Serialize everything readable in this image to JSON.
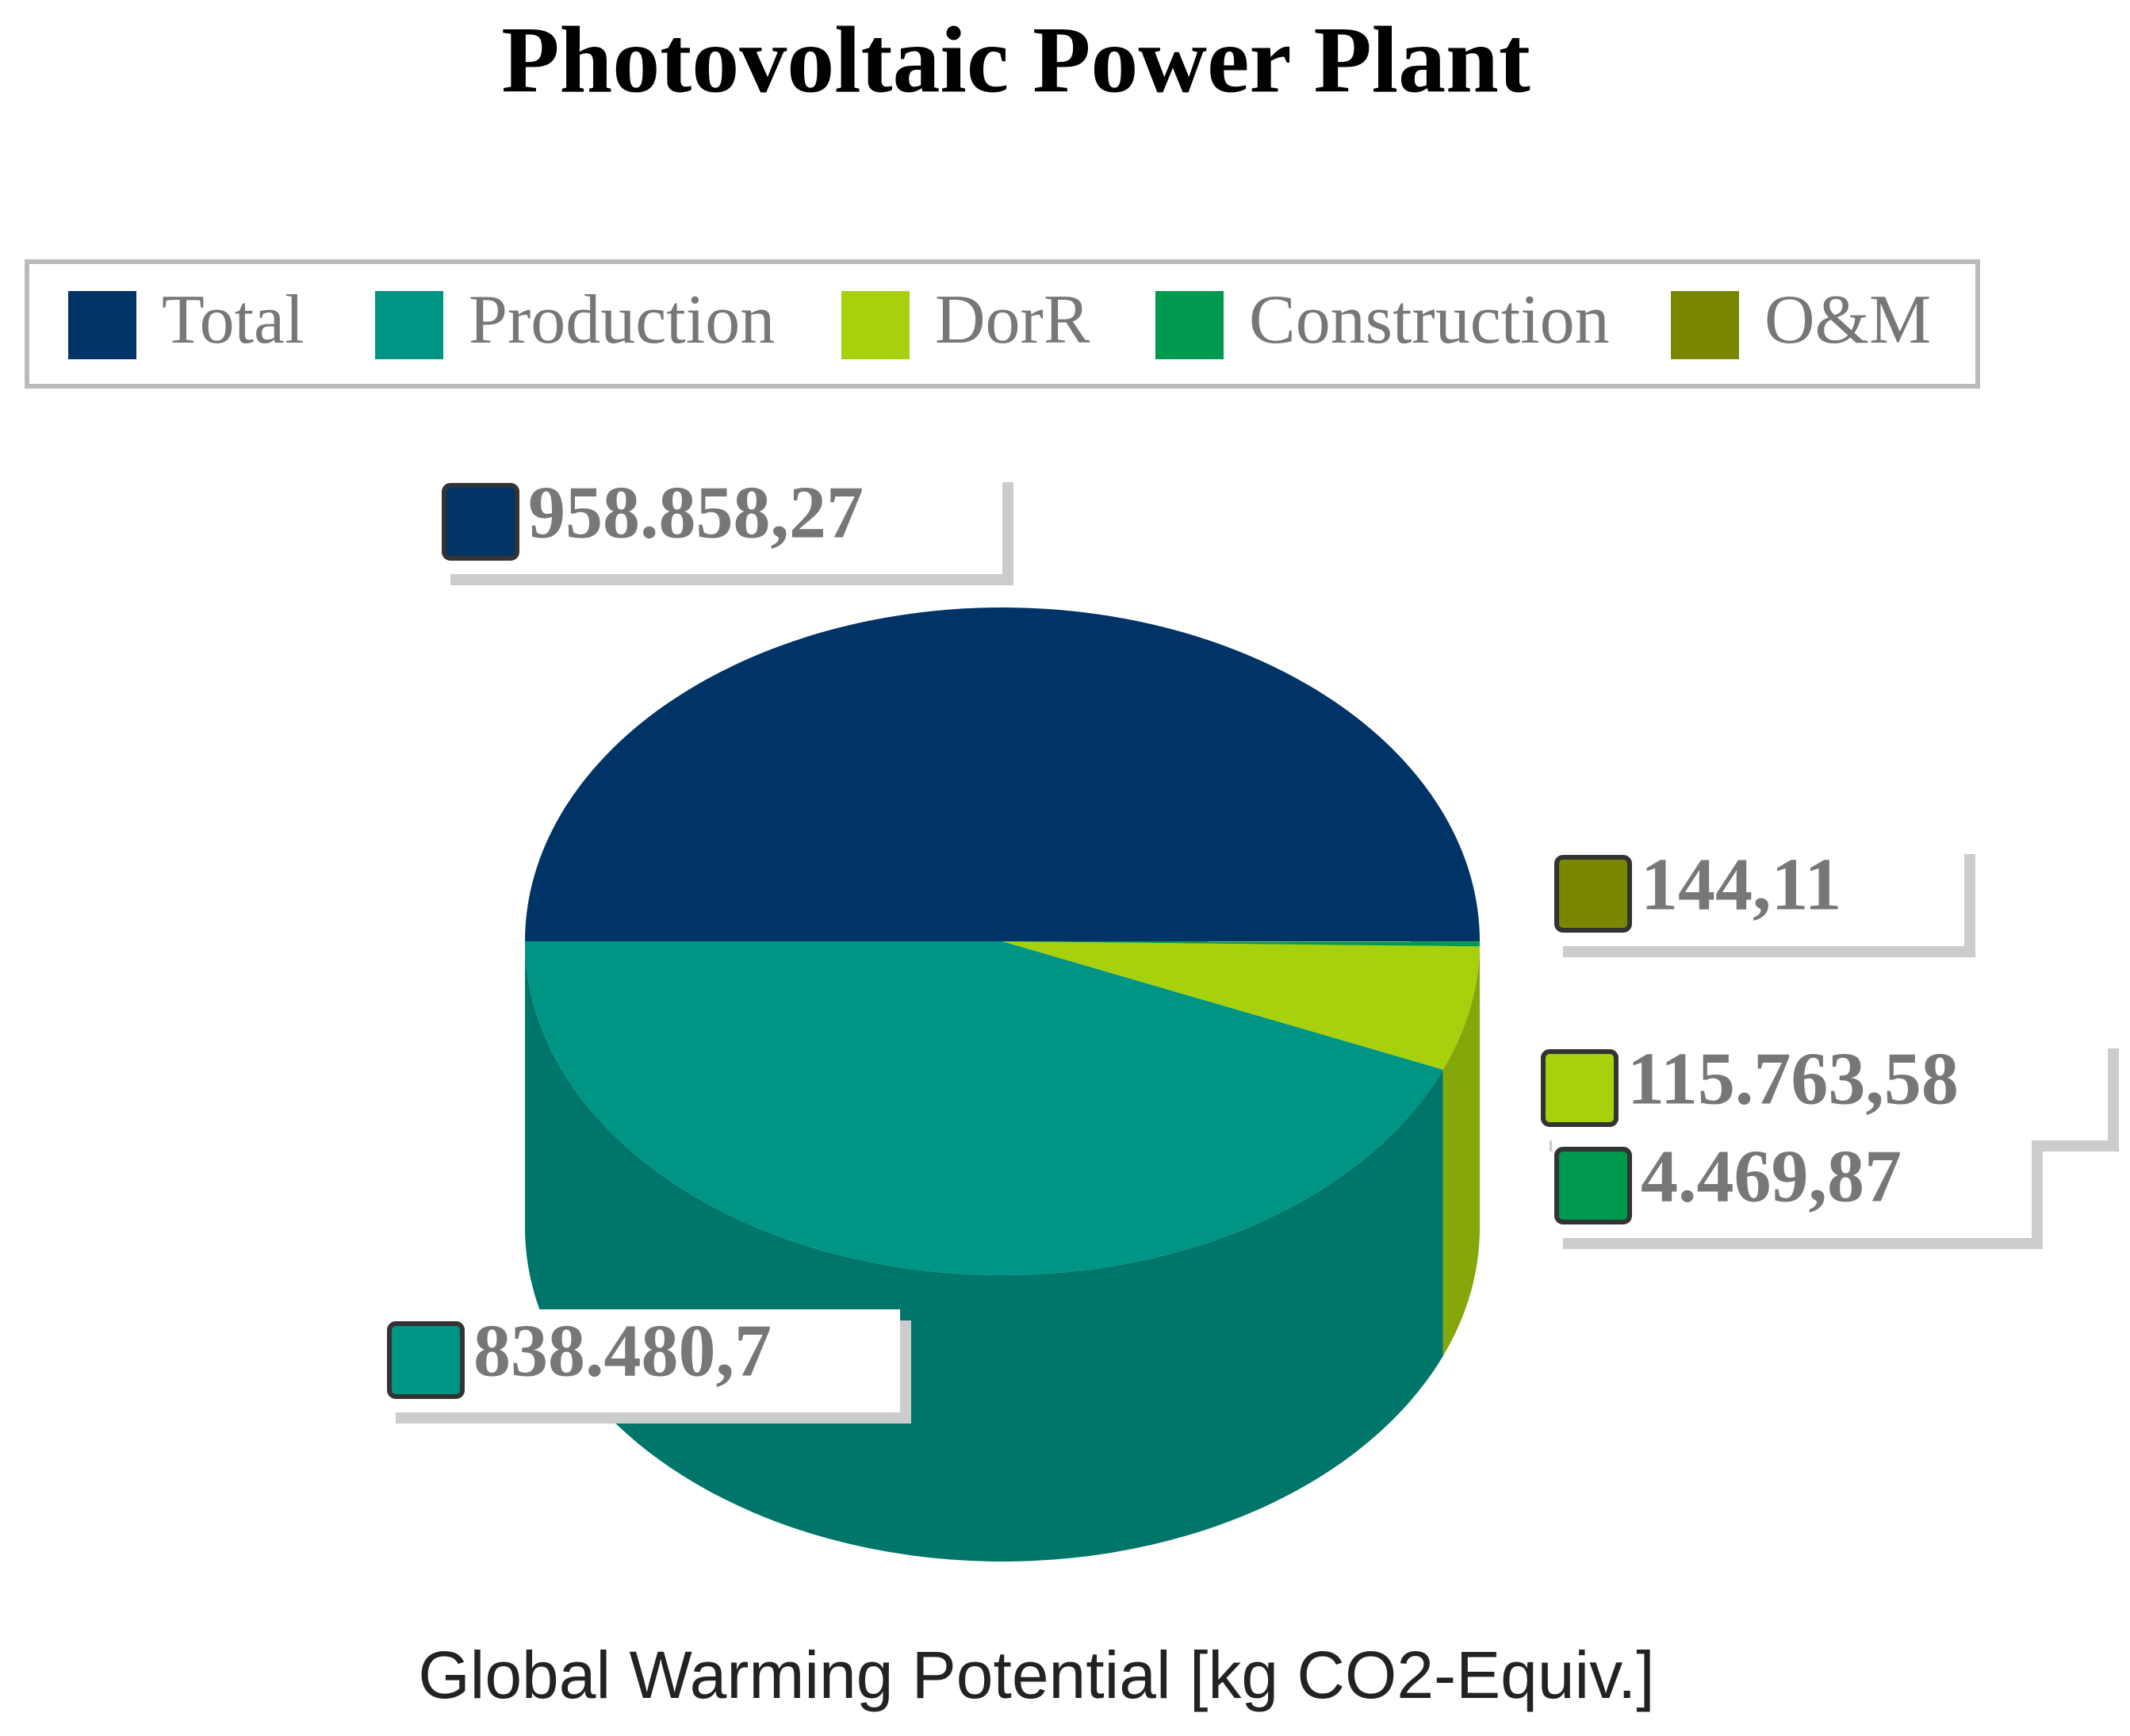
{
  "chart_data": {
    "type": "pie",
    "title": "Photovoltaic Power Plant",
    "xlabel": "Global Warming Potential [kg CO2-Equiv.]",
    "categories": [
      "Total",
      "Production",
      "DorR",
      "Construction",
      "O&M"
    ],
    "values": [
      958858.27,
      838480.7,
      115763.58,
      4469.87,
      144.11
    ],
    "value_labels": [
      "958.858,27",
      "838.480,7",
      "115.763,58",
      "4.469,87",
      "144,11"
    ],
    "colors": [
      "#003366",
      "#009485",
      "#a6d10c",
      "#009a4e",
      "#7a8800"
    ],
    "legend": "top"
  }
}
